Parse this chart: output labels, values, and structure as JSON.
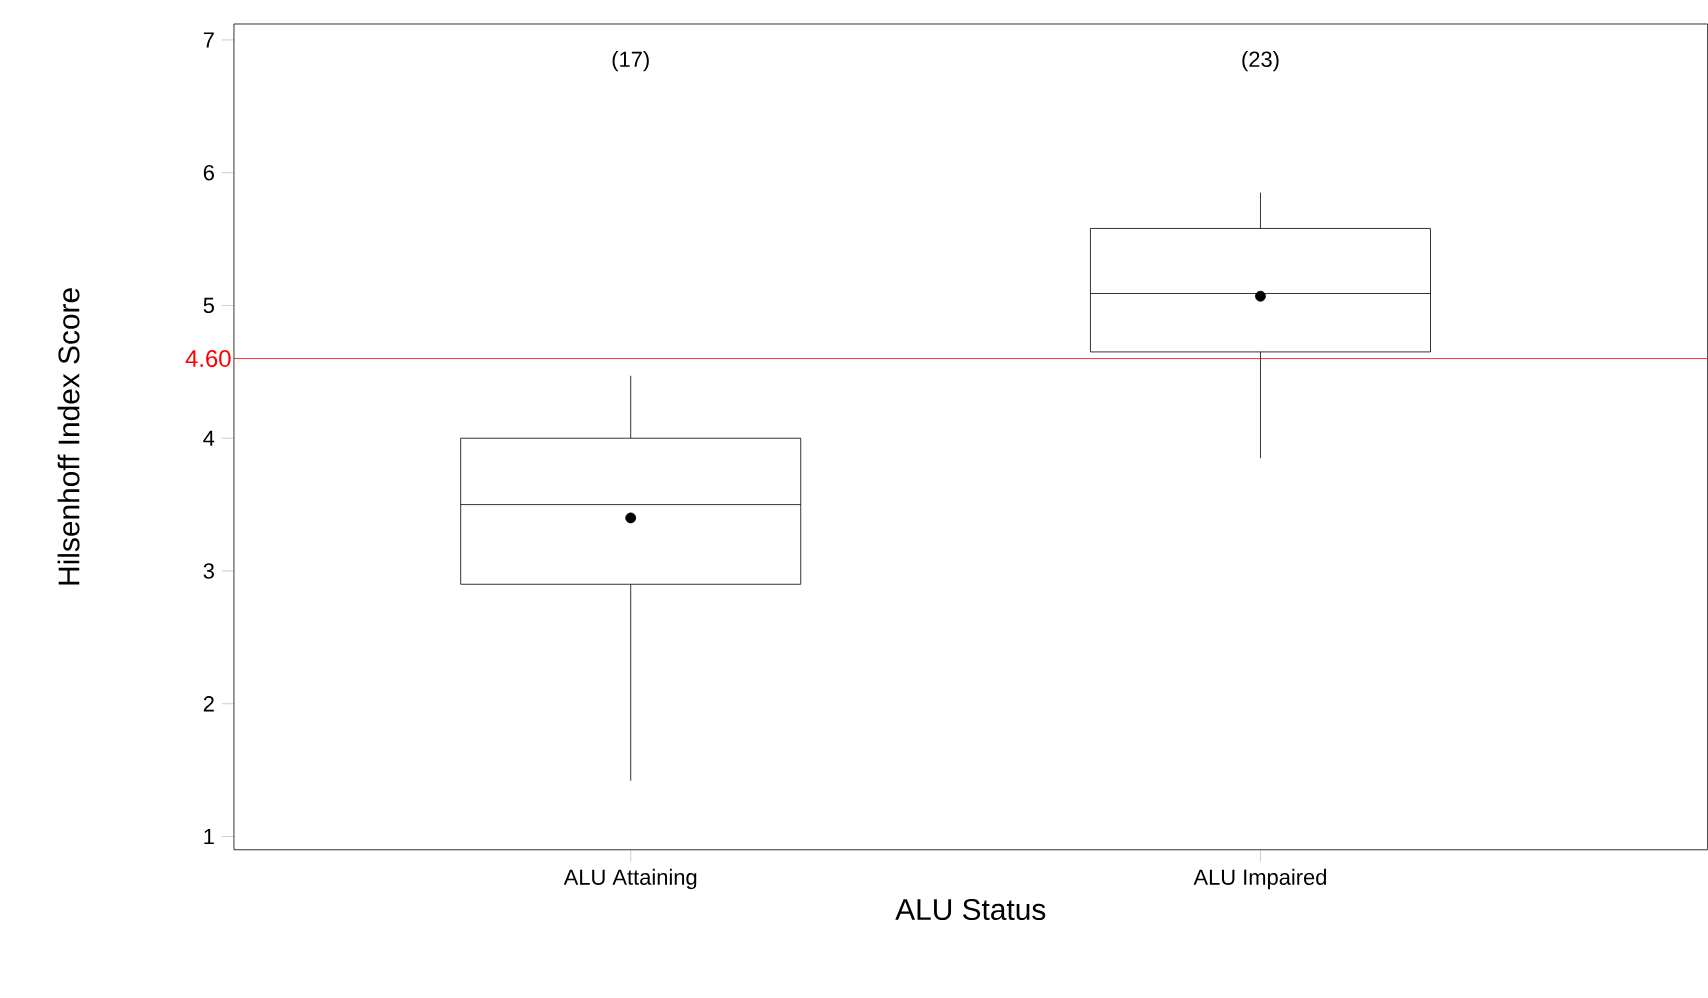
{
  "chart_data": {
    "type": "box",
    "xlabel": "ALU Status",
    "ylabel": "Hilsenhoff Index Score",
    "categories": [
      "ALU Attaining",
      "ALU Impaired"
    ],
    "boxes": [
      {
        "low": 1.42,
        "q1": 2.9,
        "median": 3.5,
        "q3": 4.0,
        "high": 4.47,
        "mean": 3.4
      },
      {
        "low": 3.85,
        "q1": 4.65,
        "median": 5.09,
        "q3": 5.58,
        "high": 5.85,
        "mean": 5.07
      }
    ],
    "color": "#000000",
    "ylim": [
      0.9,
      7.12
    ],
    "yticks": [
      1,
      2,
      3,
      4,
      5,
      6,
      7
    ],
    "ref_lines": [
      {
        "axis": "y",
        "value": 4.6,
        "label": "4.60",
        "color": "#ff0000"
      }
    ],
    "annotations": [
      "(17)",
      "(23)"
    ],
    "grid": false,
    "marker": "circle"
  }
}
